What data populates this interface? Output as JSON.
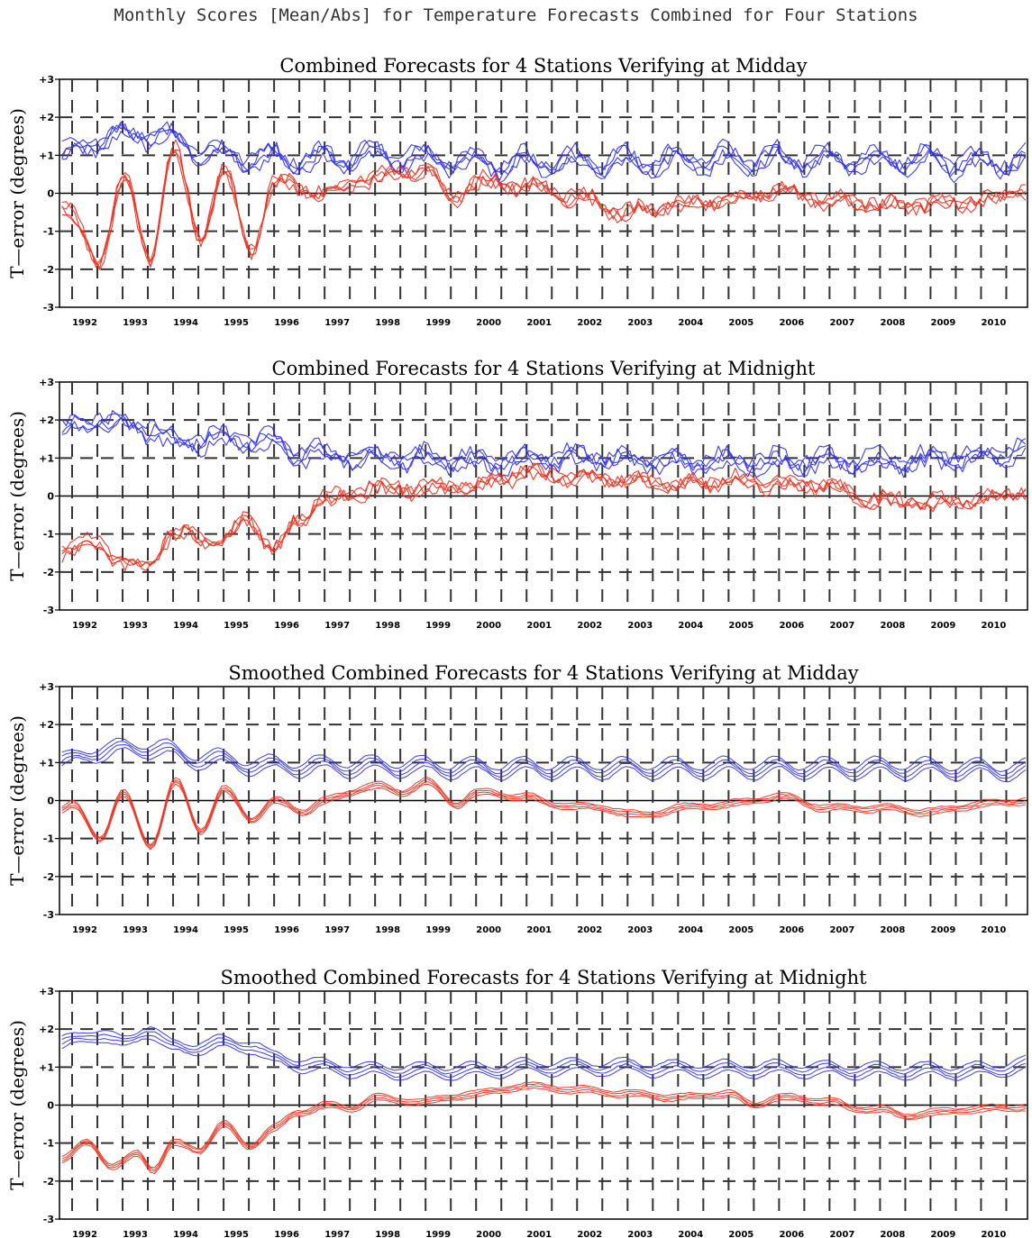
{
  "title": "Monthly Scores [Mean/Abs] for Temperature Forecasts Combined for Four Stations",
  "colors": {
    "abs": "#3333ee",
    "mean": "#ee3322"
  },
  "chart_data": [
    {
      "type": "line",
      "title": "Combined Forecasts for 4 Stations Verifying at Midday",
      "ylabel": "T—error (degrees)",
      "ylim": [
        -3,
        3
      ],
      "yticks": [
        "+3",
        "+2",
        "+1",
        "0",
        "-1",
        "-2",
        "-3"
      ],
      "xlabels": [
        "1992",
        "1993",
        "1994",
        "1995",
        "1996",
        "1997",
        "1998",
        "1999",
        "2000",
        "2001",
        "2002",
        "2003",
        "2004",
        "2005",
        "2006",
        "2007",
        "2008",
        "2009",
        "2010"
      ],
      "x_range_years": [
        1991.75,
        2010.92
      ],
      "series": [
        {
          "kind": "abs",
          "color": "#3333ee",
          "members": 4,
          "smoothed": false,
          "anchors": [
            [
              1991.8,
              0.9
            ],
            [
              1992.5,
              1.4
            ],
            [
              1993.5,
              1.6
            ],
            [
              1994.0,
              1.4
            ],
            [
              1995.0,
              1.0
            ],
            [
              1996.0,
              0.9
            ],
            [
              1997.0,
              0.9
            ],
            [
              1998.0,
              1.0
            ],
            [
              1999.0,
              0.9
            ],
            [
              2000.0,
              0.8
            ],
            [
              2002.0,
              0.8
            ],
            [
              2006.0,
              0.9
            ],
            [
              2010.9,
              0.8
            ]
          ],
          "seasonal_amplitude": 0.25
        },
        {
          "kind": "mean",
          "color": "#ee3322",
          "members": 4,
          "smoothed": false,
          "anchors": [
            [
              1991.8,
              -0.3
            ],
            [
              1992.55,
              -1.8
            ],
            [
              1993.0,
              0.4
            ],
            [
              1993.55,
              -1.7
            ],
            [
              1994.0,
              1.2
            ],
            [
              1994.55,
              -1.2
            ],
            [
              1995.0,
              0.6
            ],
            [
              1995.55,
              -1.5
            ],
            [
              1996.0,
              0.3
            ],
            [
              1997.0,
              0.0
            ],
            [
              1998.0,
              0.4
            ],
            [
              1999.0,
              0.6
            ],
            [
              1999.6,
              -0.1
            ],
            [
              2000.0,
              0.3
            ],
            [
              2001.0,
              0.2
            ],
            [
              2002.0,
              -0.1
            ],
            [
              2003.0,
              -0.5
            ],
            [
              2004.0,
              -0.3
            ],
            [
              2005.0,
              -0.2
            ],
            [
              2006.0,
              0.1
            ],
            [
              2007.0,
              -0.2
            ],
            [
              2008.0,
              -0.3
            ],
            [
              2009.0,
              -0.3
            ],
            [
              2010.0,
              -0.2
            ],
            [
              2010.9,
              0.1
            ]
          ],
          "seasonal_amplitude": 0.1
        }
      ]
    },
    {
      "type": "line",
      "title": "Combined Forecasts for 4 Stations Verifying at Midnight",
      "ylabel": "T—error (degrees)",
      "ylim": [
        -3,
        3
      ],
      "yticks": [
        "+3",
        "+2",
        "+1",
        "0",
        "-1",
        "-2",
        "-3"
      ],
      "xlabels": [
        "1992",
        "1993",
        "1994",
        "1995",
        "1996",
        "1997",
        "1998",
        "1999",
        "2000",
        "2001",
        "2002",
        "2003",
        "2004",
        "2005",
        "2006",
        "2007",
        "2008",
        "2009",
        "2010"
      ],
      "x_range_years": [
        1991.75,
        2010.92
      ],
      "series": [
        {
          "kind": "abs",
          "color": "#3333ee",
          "members": 4,
          "smoothed": false,
          "anchors": [
            [
              1991.8,
              1.7
            ],
            [
              1992.5,
              2.0
            ],
            [
              1993.5,
              1.8
            ],
            [
              1994.0,
              1.4
            ],
            [
              1995.0,
              1.5
            ],
            [
              1996.0,
              1.4
            ],
            [
              1996.5,
              1.1
            ],
            [
              1997.0,
              1.1
            ],
            [
              1998.0,
              1.0
            ],
            [
              1999.0,
              1.0
            ],
            [
              2000.0,
              0.9
            ],
            [
              2002.0,
              1.0
            ],
            [
              2004.0,
              0.9
            ],
            [
              2006.0,
              0.9
            ],
            [
              2008.0,
              0.9
            ],
            [
              2010.0,
              1.0
            ],
            [
              2010.9,
              1.2
            ]
          ],
          "seasonal_amplitude": 0.15
        },
        {
          "kind": "mean",
          "color": "#ee3322",
          "members": 4,
          "smoothed": false,
          "anchors": [
            [
              1991.8,
              -1.5
            ],
            [
              1992.5,
              -1.2
            ],
            [
              1993.0,
              -1.8
            ],
            [
              1993.5,
              -1.8
            ],
            [
              1994.0,
              -1.0
            ],
            [
              1995.0,
              -1.2
            ],
            [
              1995.5,
              -0.6
            ],
            [
              1996.0,
              -1.4
            ],
            [
              1996.5,
              -0.6
            ],
            [
              1997.0,
              -0.1
            ],
            [
              1998.0,
              0.2
            ],
            [
              1999.0,
              0.2
            ],
            [
              2000.0,
              0.3
            ],
            [
              2001.0,
              0.6
            ],
            [
              2002.0,
              0.5
            ],
            [
              2003.0,
              0.4
            ],
            [
              2004.0,
              0.3
            ],
            [
              2005.0,
              0.4
            ],
            [
              2006.0,
              0.3
            ],
            [
              2007.0,
              0.3
            ],
            [
              2007.7,
              -0.1
            ],
            [
              2008.0,
              -0.1
            ],
            [
              2009.0,
              -0.2
            ],
            [
              2010.0,
              -0.1
            ],
            [
              2010.9,
              0.1
            ]
          ],
          "seasonal_amplitude": 0.1
        }
      ]
    },
    {
      "type": "line",
      "title": "Smoothed Combined Forecasts for 4 Stations Verifying at Midday",
      "ylabel": "T—error (degrees)",
      "ylim": [
        -3,
        3
      ],
      "yticks": [
        "+3",
        "+2",
        "+1",
        "0",
        "-1",
        "-2",
        "-3"
      ],
      "xlabels": [
        "1992",
        "1993",
        "1994",
        "1995",
        "1996",
        "1997",
        "1998",
        "1999",
        "2000",
        "2001",
        "2002",
        "2003",
        "2004",
        "2005",
        "2006",
        "2007",
        "2008",
        "2009",
        "2010"
      ],
      "x_range_years": [
        1991.75,
        2010.92
      ],
      "series": [
        {
          "kind": "abs",
          "color": "#3333ee",
          "members": 4,
          "smoothed": true,
          "anchors": [
            [
              1991.8,
              1.0
            ],
            [
              1992.5,
              1.3
            ],
            [
              1993.5,
              1.4
            ],
            [
              1994.5,
              1.1
            ],
            [
              1996.0,
              0.9
            ],
            [
              1998.0,
              0.9
            ],
            [
              2000.0,
              0.85
            ],
            [
              2002.0,
              0.85
            ],
            [
              2004.0,
              0.85
            ],
            [
              2006.0,
              0.85
            ],
            [
              2008.0,
              0.85
            ],
            [
              2010.9,
              0.8
            ]
          ],
          "seasonal_amplitude": 0.18
        },
        {
          "kind": "mean",
          "color": "#ee3322",
          "members": 4,
          "smoothed": true,
          "anchors": [
            [
              1991.8,
              -0.2
            ],
            [
              1992.0,
              -0.1
            ],
            [
              1992.55,
              -1.0
            ],
            [
              1993.0,
              0.2
            ],
            [
              1993.55,
              -1.2
            ],
            [
              1994.05,
              0.5
            ],
            [
              1994.55,
              -0.8
            ],
            [
              1995.0,
              0.3
            ],
            [
              1995.55,
              -0.5
            ],
            [
              1996.0,
              0.0
            ],
            [
              1996.55,
              -0.3
            ],
            [
              1997.0,
              0.0
            ],
            [
              1998.0,
              0.4
            ],
            [
              1998.5,
              0.2
            ],
            [
              1999.0,
              0.5
            ],
            [
              1999.6,
              -0.1
            ],
            [
              2000.0,
              0.2
            ],
            [
              2001.0,
              0.1
            ],
            [
              2001.5,
              -0.1
            ],
            [
              2002.5,
              -0.2
            ],
            [
              2003.3,
              -0.4
            ],
            [
              2004.0,
              -0.2
            ],
            [
              2005.0,
              -0.1
            ],
            [
              2006.0,
              0.1
            ],
            [
              2007.0,
              -0.2
            ],
            [
              2008.0,
              -0.2
            ],
            [
              2009.0,
              -0.3
            ],
            [
              2010.0,
              -0.1
            ],
            [
              2010.9,
              0.0
            ]
          ],
          "seasonal_amplitude": 0.05
        }
      ]
    },
    {
      "type": "line",
      "title": "Smoothed Combined Forecasts for 4 Stations Verifying at Midnight",
      "ylabel": "T—error (degrees)",
      "ylim": [
        -3,
        3
      ],
      "yticks": [
        "+3",
        "+2",
        "+1",
        "0",
        "-1",
        "-2",
        "-3"
      ],
      "xlabels": [
        "1992",
        "1993",
        "1994",
        "1995",
        "1996",
        "1997",
        "1998",
        "1999",
        "2000",
        "2001",
        "2002",
        "2003",
        "2004",
        "2005",
        "2006",
        "2007",
        "2008",
        "2009",
        "2010"
      ],
      "x_range_years": [
        1991.75,
        2010.92
      ],
      "series": [
        {
          "kind": "abs",
          "color": "#3333ee",
          "members": 4,
          "smoothed": true,
          "anchors": [
            [
              1991.8,
              1.6
            ],
            [
              1992.5,
              1.9
            ],
            [
              1993.0,
              1.6
            ],
            [
              1993.5,
              2.0
            ],
            [
              1994.0,
              1.5
            ],
            [
              1995.0,
              1.6
            ],
            [
              1995.5,
              1.6
            ],
            [
              1996.0,
              1.2
            ],
            [
              1997.0,
              1.0
            ],
            [
              1998.0,
              0.9
            ],
            [
              1999.0,
              0.9
            ],
            [
              2000.0,
              0.9
            ],
            [
              2001.0,
              1.0
            ],
            [
              2002.0,
              1.0
            ],
            [
              2003.0,
              1.0
            ],
            [
              2004.0,
              0.95
            ],
            [
              2006.0,
              0.95
            ],
            [
              2008.0,
              0.9
            ],
            [
              2010.0,
              0.9
            ],
            [
              2010.9,
              1.05
            ]
          ],
          "seasonal_amplitude": 0.12
        },
        {
          "kind": "mean",
          "color": "#ee3322",
          "members": 4,
          "smoothed": true,
          "anchors": [
            [
              1991.8,
              -1.4
            ],
            [
              1992.3,
              -1.0
            ],
            [
              1992.8,
              -1.6
            ],
            [
              1993.3,
              -1.3
            ],
            [
              1993.6,
              -1.7
            ],
            [
              1994.0,
              -1.0
            ],
            [
              1994.5,
              -1.2
            ],
            [
              1995.0,
              -0.5
            ],
            [
              1995.5,
              -1.1
            ],
            [
              1996.0,
              -0.6
            ],
            [
              1996.5,
              -0.2
            ],
            [
              1997.0,
              0.0
            ],
            [
              1997.5,
              -0.1
            ],
            [
              1998.0,
              0.2
            ],
            [
              1998.5,
              0.1
            ],
            [
              1999.0,
              0.1
            ],
            [
              2000.0,
              0.3
            ],
            [
              2001.0,
              0.5
            ],
            [
              2002.0,
              0.4
            ],
            [
              2003.0,
              0.3
            ],
            [
              2004.0,
              0.2
            ],
            [
              2005.0,
              0.3
            ],
            [
              2005.5,
              0.0
            ],
            [
              2006.0,
              0.2
            ],
            [
              2007.0,
              0.1
            ],
            [
              2007.5,
              -0.1
            ],
            [
              2008.0,
              -0.1
            ],
            [
              2008.5,
              -0.3
            ],
            [
              2009.0,
              -0.2
            ],
            [
              2010.0,
              -0.1
            ],
            [
              2010.9,
              -0.05
            ]
          ],
          "seasonal_amplitude": 0.04
        }
      ]
    }
  ]
}
